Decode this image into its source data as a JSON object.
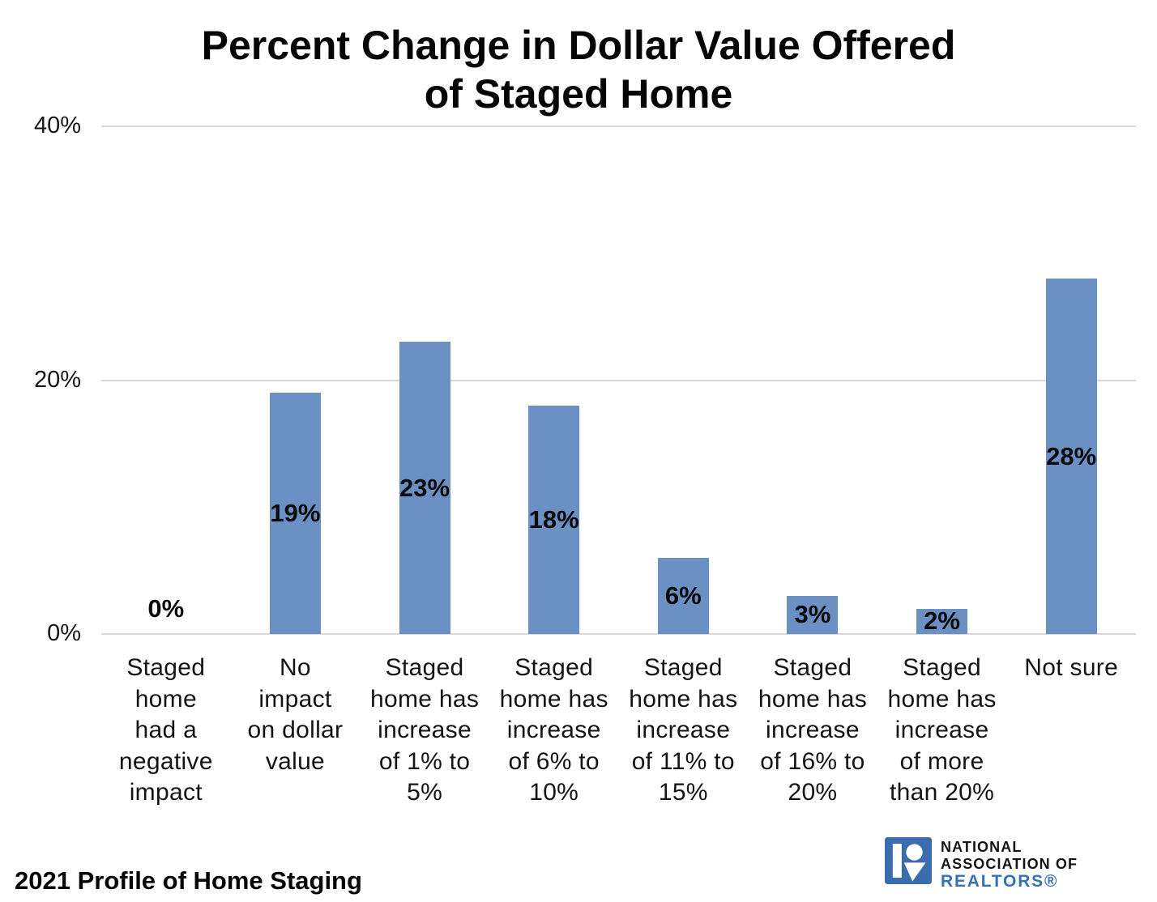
{
  "chart_data": {
    "type": "bar",
    "title": "Percent Change in Dollar Value Offered of Staged Home",
    "title_lines": [
      "Percent Change in Dollar Value Offered",
      "of Staged Home"
    ],
    "categories": [
      "Staged home had a negative impact",
      "No impact on dollar value",
      "Staged home has increase of 1% to 5%",
      "Staged home has increase of 6% to 10%",
      "Staged home has increase of 11% to 15%",
      "Staged home has increase of 16% to 20%",
      "Staged home has increase of more than 20%",
      "Not sure"
    ],
    "category_lines": [
      [
        "Staged",
        "home",
        "had a",
        "negative",
        "impact"
      ],
      [
        "No",
        "impact",
        "on dollar",
        "value"
      ],
      [
        "Staged",
        "home has",
        "increase",
        "of 1% to",
        "5%"
      ],
      [
        "Staged",
        "home has",
        "increase",
        "of 6% to",
        "10%"
      ],
      [
        "Staged",
        "home has",
        "increase",
        "of 11% to",
        "15%"
      ],
      [
        "Staged",
        "home has",
        "increase",
        "of 16% to",
        "20%"
      ],
      [
        "Staged",
        "home has",
        "increase",
        "of more",
        "than 20%"
      ],
      [
        "Not sure"
      ]
    ],
    "values": [
      0,
      19,
      23,
      18,
      6,
      3,
      2,
      28
    ],
    "value_labels": [
      "0%",
      "19%",
      "23%",
      "18%",
      "6%",
      "3%",
      "2%",
      "28%"
    ],
    "xlabel": "",
    "ylabel": "",
    "ylim": [
      0,
      40
    ],
    "yticks": [
      {
        "value": 0,
        "label": "0%"
      },
      {
        "value": 20,
        "label": "20%"
      },
      {
        "value": 40,
        "label": "40%"
      }
    ],
    "grid": true,
    "legend_position": "none",
    "bar_color": "#6A90C4",
    "gridline_color": "#D8D8D8"
  },
  "footer": {
    "source": "2021 Profile of Home Staging"
  },
  "logo": {
    "line1": "NATIONAL",
    "line2": "ASSOCIATION OF",
    "line3": "REALTORS®",
    "box_color": "#3B6CAD",
    "realtors_color": "#3471B5"
  }
}
